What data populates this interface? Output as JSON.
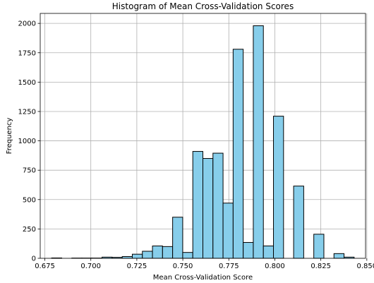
{
  "chart_data": {
    "type": "bar",
    "subtype": "histogram",
    "title": "Histogram of Mean Cross-Validation Scores",
    "xlabel": "Mean Cross-Validation Score",
    "ylabel": "Frequency",
    "xlim": [
      0.6725,
      0.8493
    ],
    "ylim": [
      0,
      2085
    ],
    "grid": true,
    "bar_color": "#87ceeb",
    "edge_color": "#000000",
    "grid_color": "#b0b0b0",
    "xticks": [
      {
        "value": 0.675,
        "label": "0.675"
      },
      {
        "value": 0.7,
        "label": "0.700"
      },
      {
        "value": 0.725,
        "label": "0.725"
      },
      {
        "value": 0.75,
        "label": "0.750"
      },
      {
        "value": 0.775,
        "label": "0.775"
      },
      {
        "value": 0.8,
        "label": "0.800"
      },
      {
        "value": 0.825,
        "label": "0.825"
      },
      {
        "value": 0.85,
        "label": "0.850"
      }
    ],
    "yticks": [
      {
        "value": 0,
        "label": "0"
      },
      {
        "value": 250,
        "label": "250"
      },
      {
        "value": 500,
        "label": "500"
      },
      {
        "value": 750,
        "label": "750"
      },
      {
        "value": 1000,
        "label": "1000"
      },
      {
        "value": 1250,
        "label": "1250"
      },
      {
        "value": 1500,
        "label": "1500"
      },
      {
        "value": 1750,
        "label": "1750"
      },
      {
        "value": 2000,
        "label": "2000"
      }
    ],
    "bin_start": 0.6787,
    "bin_width": 0.00548,
    "counts": [
      3,
      0,
      2,
      2,
      2,
      10,
      8,
      15,
      35,
      60,
      105,
      100,
      350,
      50,
      910,
      850,
      895,
      470,
      1780,
      135,
      1980,
      105,
      1210,
      0,
      615,
      0,
      205,
      0,
      40,
      10
    ]
  }
}
